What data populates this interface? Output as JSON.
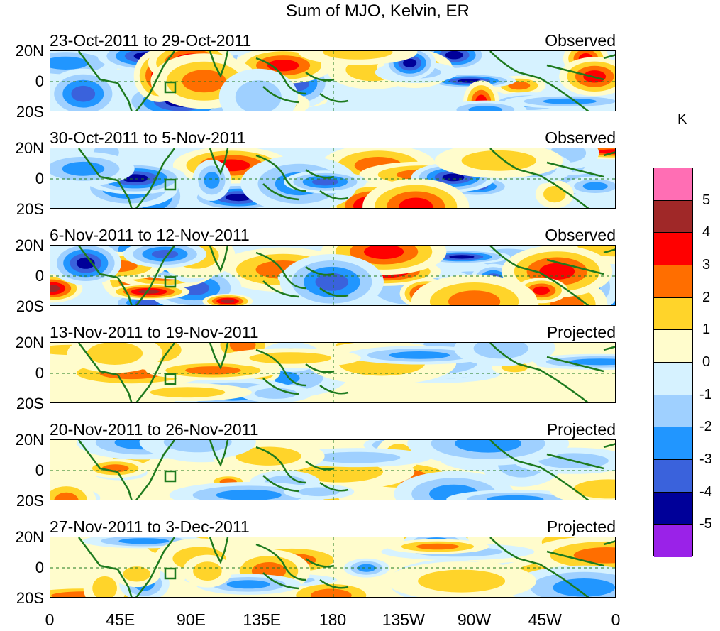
{
  "title": "Sum of MJO, Kelvin, ER",
  "panels": [
    {
      "dates": "23-Oct-2011 to 29-Oct-2011",
      "label": "Observed"
    },
    {
      "dates": "30-Oct-2011 to 5-Nov-2011",
      "label": "Observed"
    },
    {
      "dates": "6-Nov-2011 to 12-Nov-2011",
      "label": "Observed"
    },
    {
      "dates": "13-Nov-2011 to 19-Nov-2011",
      "label": "Projected"
    },
    {
      "dates": "20-Nov-2011 to 26-Nov-2011",
      "label": "Projected"
    },
    {
      "dates": "27-Nov-2011 to 3-Dec-2011",
      "label": "Projected"
    }
  ],
  "lat_labels": [
    "20N",
    "0",
    "20S"
  ],
  "lon_labels": [
    "0",
    "45E",
    "90E",
    "135E",
    "180",
    "135W",
    "90W",
    "45W",
    "0"
  ],
  "legend": {
    "unit": "K",
    "colors": [
      "#ff6eb4",
      "#a02828",
      "#ff0000",
      "#ff6e00",
      "#ffd42a",
      "#fffccc",
      "#d6f2ff",
      "#9fd0ff",
      "#2196ff",
      "#3a62dc",
      "#000099",
      "#9a22e8"
    ],
    "labels": [
      "5",
      "4",
      "3",
      "2",
      "1",
      "0",
      "-1",
      "-2",
      "-3",
      "-4",
      "-5"
    ]
  },
  "colors": {
    "coast": "#1e7a1e",
    "grid": "#1e7a1e"
  }
}
